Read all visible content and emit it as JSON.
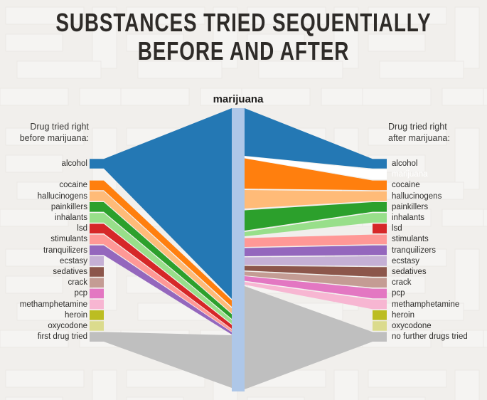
{
  "title": {
    "line1": "SUBSTANCES TRIED SEQUENTIALLY",
    "line2": "BEFORE AND AFTER"
  },
  "center": {
    "label": "marijuana",
    "bar_color": "#aec7e8"
  },
  "headers": {
    "left": [
      "Drug tried right",
      "before marijuana:"
    ],
    "right": [
      "Drug tried right",
      "after marijuana:"
    ]
  },
  "chart_data": {
    "type": "sankey-funnel",
    "center_node": "marijuana",
    "left_title": "Drug tried right before marijuana:",
    "right_title": "Drug tried right after marijuana:",
    "note": "Band thickness at the central marijuana bar is proportional to share of users; bar_from/bar_to are pixel y-extents on the central bar (y 152-550). stub_only items have negligible share.",
    "left_items": [
      {
        "label": "alcohol",
        "color": "#2478b4",
        "row": 0,
        "bar_from": 152,
        "bar_to": 420
      },
      {
        "label": "cocaine",
        "color": "#ff7f0e",
        "row": 2,
        "bar_from": 422,
        "bar_to": 431
      },
      {
        "label": "hallucinogens",
        "color": "#ffbb78",
        "row": 3,
        "bar_from": 433,
        "bar_to": 440
      },
      {
        "label": "painkillers",
        "color": "#2ca02c",
        "row": 4,
        "bar_from": 441.5,
        "bar_to": 448
      },
      {
        "label": "inhalants",
        "color": "#98df8a",
        "row": 5,
        "bar_from": 449.5,
        "bar_to": 455
      },
      {
        "label": "lsd",
        "color": "#d62728",
        "row": 6,
        "bar_from": 456.5,
        "bar_to": 462
      },
      {
        "label": "stimulants",
        "color": "#ff9896",
        "row": 7,
        "bar_from": 463,
        "bar_to": 466
      },
      {
        "label": "tranquilizers",
        "color": "#9467bd",
        "row": 8,
        "bar_from": 466.8,
        "bar_to": 470
      },
      {
        "label": "ecstasy",
        "color": "#c5b0d5",
        "row": 9,
        "stub_only": true
      },
      {
        "label": "sedatives",
        "color": "#8c564b",
        "row": 10,
        "stub_only": true
      },
      {
        "label": "crack",
        "color": "#c49c94",
        "row": 11,
        "stub_only": true
      },
      {
        "label": "pcp",
        "color": "#e377c2",
        "row": 12,
        "stub_only": true
      },
      {
        "label": "methamphetamine",
        "color": "#f7b6d2",
        "row": 13,
        "stub_only": true
      },
      {
        "label": "heroin",
        "color": "#bcbd22",
        "row": 14,
        "stub_only": true
      },
      {
        "label": "oxycodone",
        "color": "#dbdb8d",
        "row": 15,
        "stub_only": true
      },
      {
        "label": "first drug tried",
        "color": "#bfbfbf",
        "row": 16,
        "bar_from": 471,
        "bar_to": 545
      }
    ],
    "right_items": [
      {
        "label": "alcohol",
        "color": "#2478b4",
        "row": 0,
        "bar_from": 152,
        "bar_to": 219
      },
      {
        "label": "marijuana",
        "color": "#ffffff",
        "row": 1,
        "bar_from": 219.5,
        "bar_to": 222,
        "label_color": "#ffffff"
      },
      {
        "label": "cocaine",
        "color": "#ff7f0e",
        "row": 2,
        "bar_from": 222.5,
        "bar_to": 265
      },
      {
        "label": "hallucinogens",
        "color": "#ffbb78",
        "row": 3,
        "bar_from": 267,
        "bar_to": 293
      },
      {
        "label": "painkillers",
        "color": "#2ca02c",
        "row": 4,
        "bar_from": 295.5,
        "bar_to": 324
      },
      {
        "label": "inhalants",
        "color": "#98df8a",
        "row": 5,
        "bar_from": 326,
        "bar_to": 332
      },
      {
        "label": "lsd",
        "color": "#d62728",
        "row": 6,
        "stub_only": true
      },
      {
        "label": "stimulants",
        "color": "#ff9896",
        "row": 7,
        "bar_from": 334.5,
        "bar_to": 347
      },
      {
        "label": "tranquilizers",
        "color": "#9467bd",
        "row": 8,
        "bar_from": 348.5,
        "bar_to": 360
      },
      {
        "label": "ecstasy",
        "color": "#c5b0d5",
        "row": 9,
        "bar_from": 361.5,
        "bar_to": 372
      },
      {
        "label": "sedatives",
        "color": "#8c564b",
        "row": 10,
        "bar_from": 373.5,
        "bar_to": 380
      },
      {
        "label": "crack",
        "color": "#c49c94",
        "row": 11,
        "bar_from": 381.5,
        "bar_to": 387
      },
      {
        "label": "pcp",
        "color": "#e377c2",
        "row": 12,
        "bar_from": 388,
        "bar_to": 394.5
      },
      {
        "label": "methamphetamine",
        "color": "#f7b6d2",
        "row": 13,
        "bar_from": 396,
        "bar_to": 400
      },
      {
        "label": "heroin",
        "color": "#bcbd22",
        "row": 14,
        "stub_only": true
      },
      {
        "label": "oxycodone",
        "color": "#dbdb8d",
        "row": 15,
        "stub_only": true
      },
      {
        "label": "no further drugs tried",
        "color": "#bfbfbf",
        "row": 16,
        "bar_from": 402,
        "bar_to": 547
      }
    ]
  }
}
